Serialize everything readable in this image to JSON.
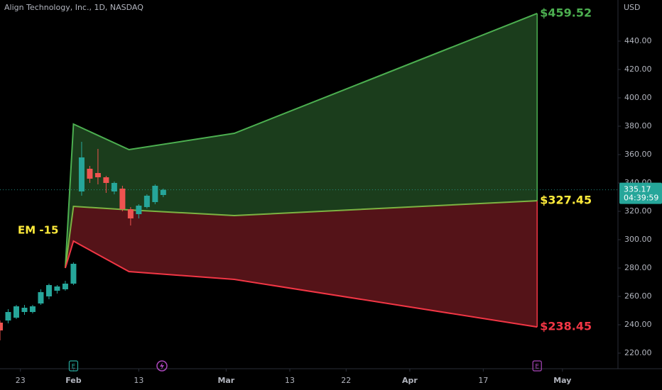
{
  "chart_data": {
    "type": "candlestick",
    "title": "Align Technology, Inc., 1D, NASDAQ",
    "currency": "USD",
    "annotation": "EM -15",
    "up_color": "#26a69a",
    "down_color": "#ef5350",
    "xlim": [
      -9,
      66.7
    ],
    "ylim": [
      209,
      469
    ],
    "xticks": [
      {
        "value": -6.5,
        "label": "23"
      },
      {
        "value": 0,
        "label": "Feb"
      },
      {
        "value": 8,
        "label": "13"
      },
      {
        "value": 18.7,
        "label": "Mar"
      },
      {
        "value": 26.5,
        "label": "13"
      },
      {
        "value": 33.4,
        "label": "22"
      },
      {
        "value": 41.2,
        "label": "Apr"
      },
      {
        "value": 50.2,
        "label": "17"
      },
      {
        "value": 59.9,
        "label": "May"
      }
    ],
    "yticks": [
      {
        "value": 220,
        "label": "220.00"
      },
      {
        "value": 240,
        "label": "240.00"
      },
      {
        "value": 260,
        "label": "260.00"
      },
      {
        "value": 280,
        "label": "280.00"
      },
      {
        "value": 300,
        "label": "300.00"
      },
      {
        "value": 320,
        "label": "320.00"
      },
      {
        "value": 340,
        "label": "340.00"
      },
      {
        "value": 360,
        "label": "360.00"
      },
      {
        "value": 380,
        "label": "380.00"
      },
      {
        "value": 400,
        "label": "400.00"
      },
      {
        "value": 420,
        "label": "420.00"
      },
      {
        "value": 440,
        "label": "440.00"
      }
    ],
    "candles": {
      "x": [
        -9,
        -8,
        -7,
        -6,
        -5,
        -4,
        -3,
        -2,
        -1,
        0,
        1,
        2,
        3,
        4,
        5,
        6,
        7,
        8,
        9,
        10,
        11
      ],
      "open": [
        241.5,
        243,
        245,
        249,
        249,
        255,
        260,
        264,
        265,
        269,
        334,
        350,
        347,
        344,
        334,
        336,
        321.5,
        318,
        323,
        326.5,
        331.5
      ],
      "high": [
        243,
        251,
        254,
        254,
        254,
        265,
        269,
        268,
        271,
        284,
        369,
        352,
        364,
        345,
        341,
        338,
        323,
        325,
        332,
        339,
        336
      ],
      "low": [
        229,
        241,
        244,
        247,
        248,
        254,
        258,
        262,
        264,
        268,
        331,
        340,
        339,
        333,
        332,
        320,
        310,
        315,
        322,
        325,
        330
      ],
      "close": [
        236,
        249,
        253,
        252,
        253,
        263,
        268,
        267,
        269,
        283,
        358,
        343,
        344,
        340,
        340,
        321.5,
        315,
        324,
        331,
        338,
        335.17
      ]
    },
    "bands": {
      "x": [
        -1,
        0,
        6.8,
        19.7,
        56.8
      ],
      "upper": [
        280,
        381.5,
        363.5,
        375,
        459.52
      ],
      "mid": [
        280,
        323.5,
        321,
        317,
        327.45
      ],
      "lower": [
        280,
        299,
        277.5,
        272,
        238.45
      ],
      "upper_color": "#4caf50",
      "mid_color": "#7cb342",
      "lower_color": "#f23645"
    },
    "price_labels": [
      {
        "value": 459.52,
        "label": "$459.52",
        "color": "#4caf50"
      },
      {
        "value": 327.45,
        "label": "$327.45",
        "color": "#ffeb3b"
      },
      {
        "value": 238.45,
        "label": "$238.45",
        "color": "#f23645"
      }
    ],
    "current_price": {
      "value": 335.17,
      "countdown": "04:39:59"
    },
    "events": [
      {
        "x": 0,
        "label": "E",
        "color": "#26a69a"
      },
      {
        "x": 56.8,
        "label": "E",
        "color": "#ab47bc"
      }
    ]
  }
}
